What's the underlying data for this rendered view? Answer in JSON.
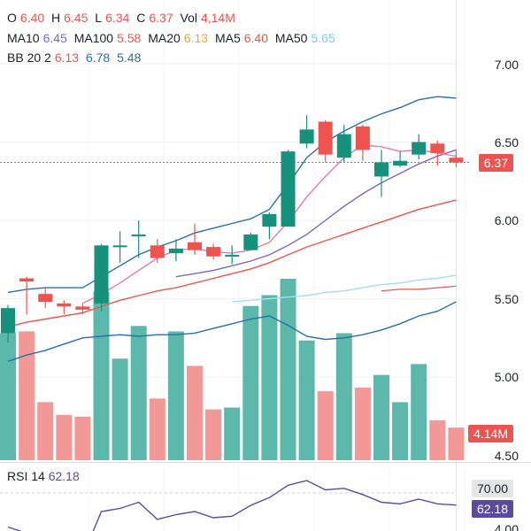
{
  "ohlc": {
    "o_label": "O",
    "o": "6.40",
    "h_label": "H",
    "h": "6.45",
    "l_label": "L",
    "l": "6.34",
    "c_label": "C",
    "c": "6.37",
    "vol_label": "Vol",
    "vol": "4,14M"
  },
  "ma": [
    {
      "label": "MA10",
      "value": "6.45",
      "color": "#7b68c4"
    },
    {
      "label": "MA100",
      "value": "5.58",
      "color": "#ef5350"
    },
    {
      "label": "MA20",
      "value": "6.13",
      "color": "#f5a623"
    },
    {
      "label": "MA5",
      "value": "6.40",
      "color": "#ef5350"
    },
    {
      "label": "MA50",
      "value": "5.65",
      "color": "#7ec8f0"
    }
  ],
  "bb": {
    "label": "BB 20 2",
    "v1": "6.13",
    "c1": "#ef5350",
    "v2": "6.78",
    "c2": "#2a6fa8",
    "v3": "5.48",
    "c3": "#2a6fa8"
  },
  "price_axis": [
    "7.00",
    "6.50",
    "6.00",
    "5.50",
    "5.00",
    "4.50"
  ],
  "last_price_tag": "6.37",
  "volume_tag": "4.14M",
  "rsi": {
    "label": "RSI 14",
    "value": "62.18",
    "level_tag": "70.00",
    "value_tag": "62.18",
    "partial_axis_label": "4.00"
  },
  "colors": {
    "up": "#16917c",
    "down": "#ef5350",
    "up_volume": "#5cb8aa",
    "down_volume": "#f29896",
    "bb": "#2a6fa8",
    "ma5": "#e879a6",
    "ma10": "#7b68c4",
    "ma20": "#ef5350",
    "ma50": "#a8dcf3",
    "ma100": "#ef5350",
    "rsi": "#5c4aa0"
  },
  "candles": [
    {
      "o": 5.28,
      "h": 5.46,
      "l": 5.22,
      "c": 5.44
    },
    {
      "o": 5.63,
      "h": 5.64,
      "l": 5.4,
      "c": 5.61
    },
    {
      "o": 5.53,
      "h": 5.57,
      "l": 5.44,
      "c": 5.48
    },
    {
      "o": 5.47,
      "h": 5.49,
      "l": 5.4,
      "c": 5.45
    },
    {
      "o": 5.45,
      "h": 5.47,
      "l": 5.4,
      "c": 5.43
    },
    {
      "o": 5.47,
      "h": 5.85,
      "l": 5.42,
      "c": 5.84
    },
    {
      "o": 5.83,
      "h": 5.93,
      "l": 5.73,
      "c": 5.84
    },
    {
      "o": 5.9,
      "h": 6.0,
      "l": 5.76,
      "c": 5.91
    },
    {
      "o": 5.84,
      "h": 5.88,
      "l": 5.73,
      "c": 5.76
    },
    {
      "o": 5.79,
      "h": 5.88,
      "l": 5.74,
      "c": 5.82
    },
    {
      "o": 5.86,
      "h": 5.98,
      "l": 5.78,
      "c": 5.81
    },
    {
      "o": 5.83,
      "h": 5.85,
      "l": 5.75,
      "c": 5.77
    },
    {
      "o": 5.77,
      "h": 5.84,
      "l": 5.72,
      "c": 5.78
    },
    {
      "o": 5.81,
      "h": 5.92,
      "l": 5.81,
      "c": 5.91
    },
    {
      "o": 5.96,
      "h": 6.05,
      "l": 5.88,
      "c": 6.04
    },
    {
      "o": 5.96,
      "h": 6.45,
      "l": 5.96,
      "c": 6.44
    },
    {
      "o": 6.49,
      "h": 6.67,
      "l": 6.46,
      "c": 6.58
    },
    {
      "o": 6.63,
      "h": 6.64,
      "l": 6.37,
      "c": 6.42
    },
    {
      "o": 6.4,
      "h": 6.61,
      "l": 6.37,
      "c": 6.55
    },
    {
      "o": 6.6,
      "h": 6.61,
      "l": 6.38,
      "c": 6.45
    },
    {
      "o": 6.28,
      "h": 6.45,
      "l": 6.15,
      "c": 6.37
    },
    {
      "o": 6.35,
      "h": 6.44,
      "l": 6.34,
      "c": 6.38
    },
    {
      "o": 6.42,
      "h": 6.55,
      "l": 6.39,
      "c": 6.5
    },
    {
      "o": 6.49,
      "h": 6.51,
      "l": 6.35,
      "c": 6.43
    },
    {
      "o": 6.4,
      "h": 6.45,
      "l": 6.34,
      "c": 6.37
    }
  ],
  "volumes": [
    0.7,
    0.71,
    0.32,
    0.25,
    0.24,
    0.93,
    0.56,
    0.74,
    0.34,
    0.71,
    0.52,
    0.28,
    0.29,
    0.85,
    0.91,
    1.0,
    0.66,
    0.38,
    0.7,
    0.4,
    0.47,
    0.32,
    0.53,
    0.22,
    0.18
  ],
  "ma5_line": [
    null,
    null,
    null,
    null,
    5.47,
    5.53,
    5.6,
    5.68,
    5.76,
    5.81,
    5.82,
    5.8,
    5.79,
    5.81,
    5.86,
    5.99,
    6.15,
    6.28,
    6.4,
    6.48,
    6.47,
    6.44,
    6.45,
    6.43,
    6.41
  ],
  "ma10_line": [
    null,
    null,
    null,
    null,
    null,
    null,
    null,
    null,
    null,
    5.64,
    5.66,
    5.68,
    5.71,
    5.74,
    5.78,
    5.84,
    5.91,
    6.0,
    6.09,
    6.17,
    6.24,
    6.3,
    6.36,
    6.41,
    6.45
  ],
  "ma20_line": [
    5.32,
    5.35,
    5.37,
    5.39,
    5.41,
    5.45,
    5.49,
    5.52,
    5.55,
    5.57,
    5.6,
    5.63,
    5.66,
    5.69,
    5.73,
    5.78,
    5.83,
    5.87,
    5.91,
    5.95,
    5.99,
    6.03,
    6.07,
    6.1,
    6.13
  ],
  "ma50_line": [
    null,
    null,
    null,
    null,
    null,
    null,
    null,
    null,
    null,
    null,
    null,
    null,
    5.48,
    5.49,
    5.5,
    5.51,
    5.52,
    5.54,
    5.55,
    5.57,
    5.59,
    5.6,
    5.62,
    5.63,
    5.65
  ],
  "ma100_line": [
    null,
    null,
    null,
    null,
    null,
    null,
    null,
    null,
    null,
    null,
    null,
    null,
    null,
    null,
    null,
    null,
    null,
    null,
    null,
    null,
    5.55,
    5.56,
    5.56,
    5.57,
    5.58
  ],
  "bb_upper": [
    5.54,
    5.56,
    5.57,
    5.57,
    5.57,
    5.64,
    5.71,
    5.78,
    5.83,
    5.87,
    5.92,
    5.95,
    5.98,
    6.01,
    6.07,
    6.23,
    6.4,
    6.5,
    6.57,
    6.63,
    6.68,
    6.72,
    6.77,
    6.79,
    6.78
  ],
  "bb_lower": [
    5.1,
    5.14,
    5.17,
    5.21,
    5.25,
    5.26,
    5.27,
    5.26,
    5.27,
    5.27,
    5.28,
    5.31,
    5.34,
    5.37,
    5.39,
    5.33,
    5.26,
    5.24,
    5.25,
    5.27,
    5.3,
    5.34,
    5.39,
    5.42,
    5.48
  ],
  "rsi_line": [
    48,
    44,
    32,
    30,
    29,
    58,
    60,
    64,
    53,
    56,
    58,
    54,
    55,
    62,
    67,
    75,
    78,
    72,
    73,
    69,
    64,
    63,
    66,
    63,
    62.18
  ]
}
